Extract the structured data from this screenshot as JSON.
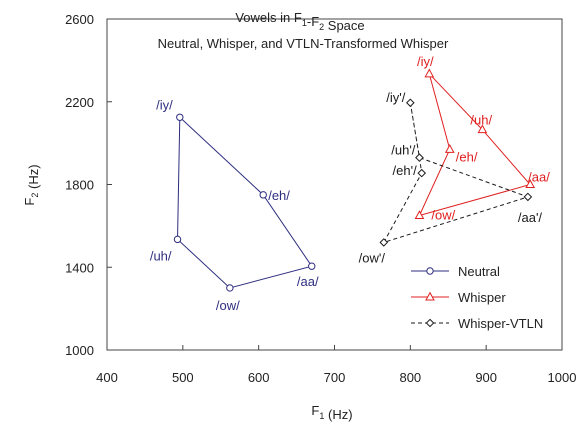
{
  "chart_data": {
    "type": "line",
    "title_line1": "Vowels in F1-F2 Space",
    "title_line2": "Neutral, Whisper, and VTLN-Transformed Whisper",
    "xlabel": "F1 (Hz)",
    "ylabel": "F2 (Hz)",
    "xlim": [
      400,
      1000
    ],
    "ylim": [
      1000,
      2600
    ],
    "xticks": [
      "400",
      "500",
      "600",
      "700",
      "800",
      "900",
      "1000"
    ],
    "yticks": [
      "1000",
      "1400",
      "1800",
      "2200",
      "2600"
    ],
    "grid": false,
    "legend_position": "bottom-right",
    "series": [
      {
        "name": "Neutral",
        "color": "#2e2e80",
        "marker": "circle",
        "dash": false,
        "x": [
          496,
          606,
          670,
          562,
          493,
          496
        ],
        "y": [
          2125,
          1750,
          1405,
          1300,
          1535,
          2125
        ],
        "point_labels": [
          "/iy/",
          "/eh/",
          "/aa/",
          "/ow/",
          "/uh/",
          ""
        ]
      },
      {
        "name": "Whisper",
        "color": "#e02020",
        "marker": "triangle",
        "dash": false,
        "x": [
          825,
          895,
          958,
          812,
          852,
          825
        ],
        "y": [
          2335,
          2065,
          1800,
          1650,
          1970,
          2335
        ],
        "point_labels": [
          "/iy/",
          "/uh/",
          "/aa/",
          "/ow/",
          "/eh/",
          ""
        ]
      },
      {
        "name": "Whisper-VTLN",
        "color": "#1a1a1a",
        "marker": "diamond",
        "dash": true,
        "x": [
          800,
          812,
          955,
          765,
          815,
          812,
          800
        ],
        "y": [
          2195,
          1930,
          1740,
          1520,
          1855,
          1930,
          2195
        ],
        "point_labels": [
          "/iy'/",
          "/uh'/",
          "/aa'/",
          "/ow'/",
          "/eh'/",
          "",
          ""
        ]
      }
    ]
  }
}
